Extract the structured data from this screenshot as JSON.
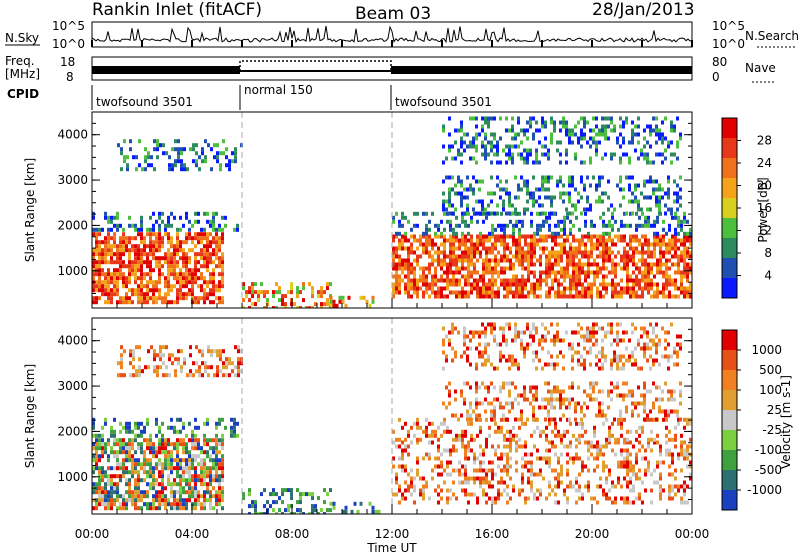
{
  "header": {
    "station": "Rankin Inlet (fitACF)",
    "beam": "Beam 03",
    "date": "28/Jan/2013"
  },
  "status_panels": {
    "nsky_label": "N.Sky",
    "nsky_ticks": [
      "10^5",
      "10^0"
    ],
    "nsearch_label": "N.Search",
    "freq_label_1": "Freq.",
    "freq_label_2": "[MHz]",
    "freq_ticks": [
      "18",
      "8"
    ],
    "nave_label": "Nave",
    "nave_ticks": [
      "80",
      "0"
    ],
    "cpid_label": "CPID",
    "cpid_segments": [
      {
        "name": "twofsound 3501",
        "start": 0.0,
        "end": 6.0
      },
      {
        "name": "normal 150",
        "start": 6.0,
        "end": 12.0
      },
      {
        "name": "twofsound 3501",
        "start": 12.0,
        "end": 24.0
      }
    ]
  },
  "x_axis": {
    "label": "Time UT",
    "ticks": [
      "00:00",
      "04:00",
      "08:00",
      "12:00",
      "16:00",
      "20:00",
      "00:00"
    ]
  },
  "colors": {
    "power": [
      "#0a1aff",
      "#1f4fb0",
      "#2c8a5e",
      "#4cbf3c",
      "#d7d020",
      "#f4a21a",
      "#f0711a",
      "#e8381a",
      "#e00000"
    ],
    "velocity": [
      "#1a3fbf",
      "#2e6f6f",
      "#3ea03e",
      "#7cd040",
      "#c8c8c8",
      "#e0a030",
      "#f08020",
      "#e85018",
      "#e00000"
    ]
  },
  "chart_data": [
    {
      "type": "heatmap",
      "panel": "power",
      "ylabel": "Slant Range [km]",
      "yticks": [
        "4000",
        "3000",
        "2000",
        "1000"
      ],
      "xlim": [
        0,
        24
      ],
      "ylim": [
        180,
        4500
      ],
      "colorbar_label": "Power [dB]",
      "colorbar_ticks": [
        "28",
        "24",
        "20",
        "16",
        "12",
        "8",
        "4"
      ],
      "regions": [
        {
          "t0": 0.0,
          "t1": 5.2,
          "r0": 350,
          "r1": 1850,
          "level": "high"
        },
        {
          "t0": 0.0,
          "t1": 5.8,
          "r0": 1900,
          "r1": 2300,
          "level": "low"
        },
        {
          "t0": 1.0,
          "t1": 6.0,
          "r0": 3200,
          "r1": 3900,
          "level": "low"
        },
        {
          "t0": 6.0,
          "t1": 9.5,
          "r0": 180,
          "r1": 750,
          "level": "mid"
        },
        {
          "t0": 9.5,
          "t1": 11.5,
          "r0": 180,
          "r1": 450,
          "level": "mid"
        },
        {
          "t0": 12.0,
          "t1": 24.0,
          "r0": 400,
          "r1": 1800,
          "level": "high"
        },
        {
          "t0": 12.0,
          "t1": 24.0,
          "r0": 1800,
          "r1": 2300,
          "level": "low"
        },
        {
          "t0": 14.0,
          "t1": 23.5,
          "r0": 2300,
          "r1": 3100,
          "level": "low"
        },
        {
          "t0": 14.0,
          "t1": 23.5,
          "r0": 3400,
          "r1": 4400,
          "level": "low"
        }
      ]
    },
    {
      "type": "heatmap",
      "panel": "velocity",
      "ylabel": "Slant Range [km]",
      "yticks": [
        "4000",
        "3000",
        "2000",
        "1000"
      ],
      "xlim": [
        0,
        24
      ],
      "ylim": [
        180,
        4500
      ],
      "colorbar_label": "Velocity [m s-1]",
      "colorbar_ticks": [
        "1000",
        "500",
        "100",
        "25",
        "-25",
        "-100",
        "-500",
        "-1000"
      ],
      "regions": [
        {
          "t0": 0.0,
          "t1": 5.2,
          "r0": 350,
          "r1": 1850,
          "level": "mixed"
        },
        {
          "t0": 0.0,
          "t1": 5.8,
          "r0": 1900,
          "r1": 2300,
          "level": "toward"
        },
        {
          "t0": 1.0,
          "t1": 6.0,
          "r0": 3200,
          "r1": 3900,
          "level": "away"
        },
        {
          "t0": 6.0,
          "t1": 9.5,
          "r0": 180,
          "r1": 750,
          "level": "toward"
        },
        {
          "t0": 9.5,
          "t1": 11.5,
          "r0": 180,
          "r1": 450,
          "level": "toward"
        },
        {
          "t0": 12.0,
          "t1": 24.0,
          "r0": 400,
          "r1": 1800,
          "level": "away"
        },
        {
          "t0": 12.0,
          "t1": 24.0,
          "r0": 1800,
          "r1": 2300,
          "level": "away"
        },
        {
          "t0": 14.0,
          "t1": 23.5,
          "r0": 2300,
          "r1": 3100,
          "level": "away"
        },
        {
          "t0": 14.0,
          "t1": 23.5,
          "r0": 3400,
          "r1": 4400,
          "level": "away"
        }
      ]
    }
  ]
}
